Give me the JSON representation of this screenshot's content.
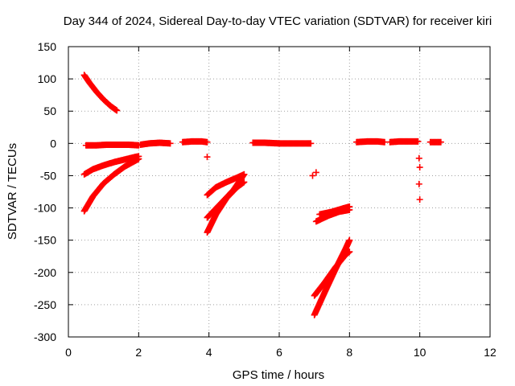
{
  "chart_data": {
    "type": "scatter",
    "title": "Day 344 of 2024, Sidereal Day-to-day VTEC variation (SDTVAR) for receiver kiri",
    "xlabel": "GPS time / hours",
    "ylabel": "SDTVAR / TECUs",
    "xlim": [
      0,
      12
    ],
    "ylim": [
      -300,
      150
    ],
    "xticks": [
      0,
      2,
      4,
      6,
      8,
      10,
      12
    ],
    "yticks": [
      150,
      100,
      50,
      0,
      -50,
      -100,
      -150,
      -200,
      -250,
      -300
    ],
    "grid": true,
    "marker": "+",
    "color": "#ff0000",
    "segments": [
      {
        "x": [
          0.45,
          0.6,
          0.8,
          1.0,
          1.2,
          1.38
        ],
        "y": [
          106,
          94,
          80,
          68,
          58,
          51
        ]
      },
      {
        "x": [
          0.5,
          0.8,
          1.1,
          1.4,
          1.7,
          2.0
        ],
        "y": [
          -3,
          -3,
          -2,
          -2,
          -2,
          -3
        ]
      },
      {
        "x": [
          0.45,
          0.7,
          1.0,
          1.3,
          1.6,
          1.9,
          2.0
        ],
        "y": [
          -48,
          -40,
          -34,
          -29,
          -25,
          -21,
          -20
        ]
      },
      {
        "x": [
          0.45,
          0.7,
          1.0,
          1.3,
          1.6,
          1.9,
          2.0
        ],
        "y": [
          -105,
          -82,
          -62,
          -48,
          -36,
          -27,
          -24
        ]
      },
      {
        "x": [
          2.05,
          2.3,
          2.6,
          2.9
        ],
        "y": [
          -2,
          0,
          1,
          0
        ]
      },
      {
        "x": [
          3.25,
          3.5,
          3.8,
          3.95
        ],
        "y": [
          2,
          3,
          3,
          2
        ]
      },
      {
        "x": [
          3.95
        ],
        "y": [
          -21
        ]
      },
      {
        "x": [
          3.95,
          4.2,
          4.5,
          4.8,
          5.0
        ],
        "y": [
          -80,
          -68,
          -60,
          -53,
          -48
        ]
      },
      {
        "x": [
          3.95,
          4.2,
          4.5,
          4.8,
          5.0
        ],
        "y": [
          -138,
          -110,
          -85,
          -68,
          -60
        ]
      },
      {
        "x": [
          3.95,
          4.3,
          4.7,
          5.0
        ],
        "y": [
          -115,
          -95,
          -72,
          -48
        ]
      },
      {
        "x": [
          5.25,
          5.6,
          6.0,
          6.4,
          6.8,
          6.9
        ],
        "y": [
          1,
          1,
          0,
          0,
          0,
          0
        ]
      },
      {
        "x": [
          6.95,
          7.05
        ],
        "y": [
          -50,
          -45
        ]
      },
      {
        "x": [
          7.0,
          7.3,
          7.6,
          7.9,
          8.0
        ],
        "y": [
          -266,
          -230,
          -195,
          -162,
          -150
        ]
      },
      {
        "x": [
          7.0,
          7.3,
          7.6,
          7.9,
          8.0
        ],
        "y": [
          -236,
          -215,
          -192,
          -172,
          -168
        ]
      },
      {
        "x": [
          7.05,
          7.4,
          7.7,
          8.0
        ],
        "y": [
          -121,
          -112,
          -106,
          -103
        ]
      },
      {
        "x": [
          7.15,
          7.5,
          7.8,
          8.0
        ],
        "y": [
          -110,
          -106,
          -101,
          -98
        ]
      },
      {
        "x": [
          8.2,
          8.5,
          8.8,
          9.0
        ],
        "y": [
          2,
          3,
          3,
          2
        ]
      },
      {
        "x": [
          9.15,
          9.4,
          9.7,
          9.95
        ],
        "y": [
          2,
          3,
          3,
          3
        ]
      },
      {
        "x": [
          9.98,
          10.0,
          9.98,
          10.0
        ],
        "y": [
          -23,
          -37,
          -63,
          -87
        ]
      },
      {
        "x": [
          10.3,
          10.45,
          10.6
        ],
        "y": [
          2,
          2,
          2
        ]
      }
    ]
  }
}
